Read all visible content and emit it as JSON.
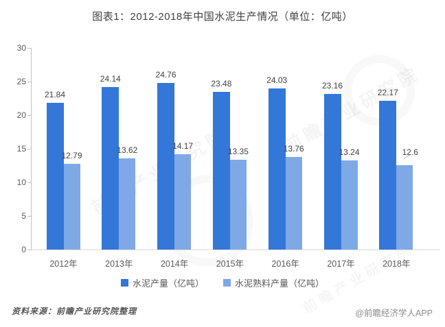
{
  "title": "图表1：2012-2018年中国水泥生产情况（单位：亿吨）",
  "chart_data": {
    "type": "bar",
    "title": "图表1：2012-2018年中国水泥生产情况（单位：亿吨）",
    "categories": [
      "2012年",
      "2013年",
      "2014年",
      "2015年",
      "2016年",
      "2017年",
      "2018年"
    ],
    "series": [
      {
        "name": "水泥产量（亿吨）",
        "color": "#3377d8",
        "values": [
          21.84,
          24.14,
          24.76,
          23.48,
          24.03,
          23.16,
          22.17
        ]
      },
      {
        "name": "水泥熟料产量（亿吨）",
        "color": "#7fa8e6",
        "values": [
          12.79,
          13.62,
          14.17,
          13.35,
          13.76,
          13.24,
          12.6
        ]
      }
    ],
    "xlabel": "",
    "ylabel": "",
    "ylim": [
      0,
      30
    ],
    "yticks": [
      0,
      5,
      10,
      15,
      20,
      25,
      30
    ],
    "grid": false,
    "legend_position": "bottom",
    "data_labels": true
  },
  "footer": {
    "source": "资料来源：前瞻产业研究院整理",
    "credit": "@前瞻经济学人APP"
  },
  "watermark": {
    "text": "前瞻产业研究院"
  }
}
